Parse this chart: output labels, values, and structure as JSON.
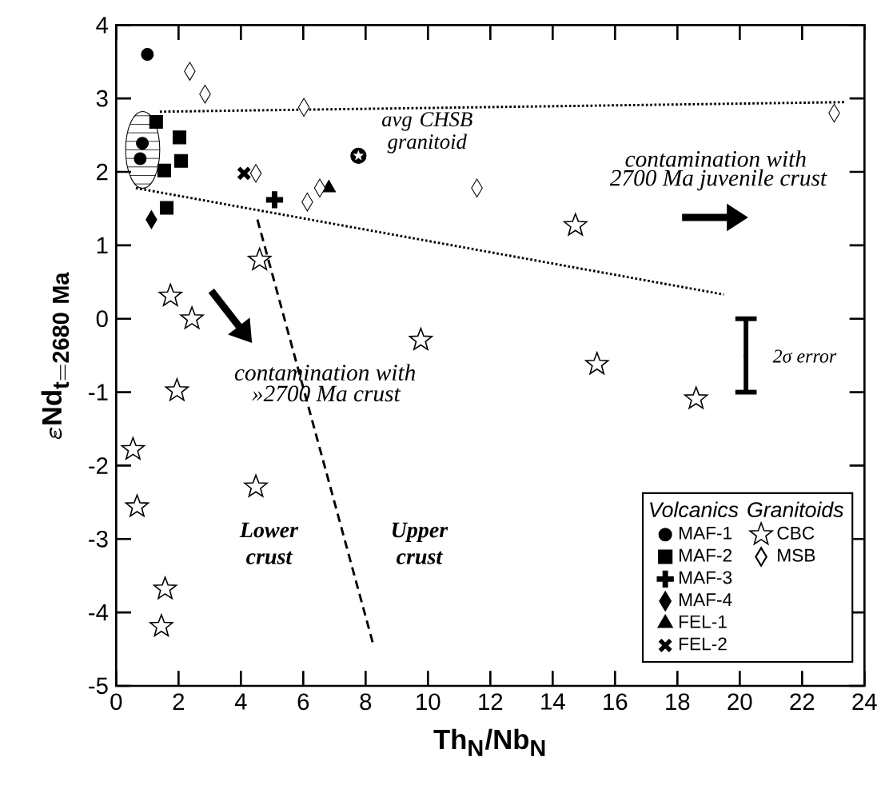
{
  "chart_data": {
    "type": "scatter",
    "xlabel": "Th$_{N}$/Nb$_{N}$",
    "ylabel": "\\boldsymbol{\\varepsilon}\\mathbf{Nd}_{\\mathbf{t=2680\\ Ma}}",
    "legend_title": "Volcanics",
    "legend": "bottom right",
    "xlim": [
      0,
      24
    ],
    "ylim": [
      -5,
      4
    ],
    "xticks": [
      0,
      2,
      4,
      6,
      8,
      10,
      12,
      14,
      16,
      18,
      20,
      22,
      24
    ],
    "yticks": [
      -5,
      -4,
      -3,
      -2,
      -1,
      0,
      1,
      2,
      3,
      4
    ],
    "series": [
      {
        "name": "MAF-1",
        "marker": "circle",
        "color": "#000000",
        "x": [
          1.0,
          0.84,
          0.77
        ],
        "values": [
          3.6,
          2.39,
          2.18
        ]
      },
      {
        "name": "MAF-2",
        "marker": "square",
        "color": "#000000",
        "x": [
          1.28,
          2.03,
          2.08,
          1.54,
          1.62
        ],
        "values": [
          2.68,
          2.47,
          2.15,
          2.02,
          1.51
        ]
      },
      {
        "name": "MAF-3",
        "marker": "plus",
        "color": "#000000",
        "x": [
          5.08
        ],
        "values": [
          1.62
        ]
      },
      {
        "name": "MAF-4",
        "marker": "diamond",
        "color": "#000000",
        "x": [
          1.13
        ],
        "values": [
          1.35
        ]
      },
      {
        "name": "FEL-1",
        "marker": "triangle",
        "color": "#000000",
        "x": [
          6.82
        ],
        "values": [
          1.78
        ]
      },
      {
        "name": "FEL-2",
        "marker": "cross",
        "color": "#000000",
        "x": [
          4.1
        ],
        "values": [
          1.98
        ]
      },
      {
        "name": "CBC",
        "marker": "star",
        "color": "#ffffff",
        "x": [
          4.6,
          1.74,
          2.43,
          9.77,
          1.95,
          0.54,
          0.67,
          4.48,
          1.57,
          1.45,
          14.73,
          15.42,
          18.6
        ],
        "values": [
          0.8,
          0.31,
          0.0,
          -0.29,
          -0.98,
          -1.78,
          -2.56,
          -2.29,
          -3.68,
          -4.19,
          1.27,
          -0.62,
          -1.09
        ]
      },
      {
        "name": "MSB",
        "marker": "diamond",
        "color": "#ffffff",
        "x": [
          2.36,
          2.85,
          6.02,
          4.48,
          6.13,
          6.53,
          11.57,
          23.03
        ],
        "values": [
          3.37,
          3.06,
          2.88,
          1.98,
          1.59,
          1.78,
          1.78,
          2.8
        ]
      },
      {
        "type": "line",
        "line_style": "dotted",
        "color": "#000000",
        "x": [
          1.4,
          23.35
        ],
        "values": [
          2.82,
          2.95
        ]
      },
      {
        "type": "line",
        "line_style": "dotted",
        "color": "#000000",
        "x": [
          0.63,
          19.49
        ],
        "values": [
          1.78,
          0.33
        ]
      },
      {
        "type": "line",
        "line_style": "dashed",
        "color": "#000000",
        "x": [
          4.53,
          8.24
        ],
        "values": [
          1.35,
          -4.43
        ]
      },
      {
        "color": "#000000",
        "x": [
          20.2
        ],
        "values": [
          -0.5
        ],
        "errors": [
          0.5
        ]
      }
    ],
    "annotations": [
      {
        "text": "avg CHSB granitoid",
        "x": 7.77,
        "y": 2.22
      },
      "contamination with",
      "2700 Ma juvenile crust",
      "contamination with",
      "»2700 Ma crust",
      "Lower crust",
      "Upper crust",
      "2σ error",
      "Granitoids"
    ]
  }
}
